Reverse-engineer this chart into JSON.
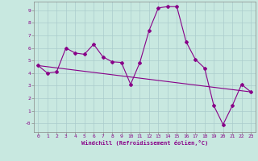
{
  "title": "",
  "xlabel": "Windchill (Refroidissement éolien,°C)",
  "ylabel": "",
  "background_color": "#c8e8e0",
  "plot_bg_color": "#c8e8e0",
  "line_color": "#880088",
  "grid_color": "#aacccc",
  "xlim": [
    -0.5,
    23.5
  ],
  "ylim": [
    -0.7,
    9.7
  ],
  "xticks": [
    0,
    1,
    2,
    3,
    4,
    5,
    6,
    7,
    8,
    9,
    10,
    11,
    12,
    13,
    14,
    15,
    16,
    17,
    18,
    19,
    20,
    21,
    22,
    23
  ],
  "yticks": [
    0,
    1,
    2,
    3,
    4,
    5,
    6,
    7,
    8,
    9
  ],
  "ytick_labels": [
    "-0",
    "1",
    "2",
    "3",
    "4",
    "5",
    "6",
    "7",
    "8",
    "9"
  ],
  "series1_x": [
    0,
    1,
    2,
    3,
    4,
    5,
    6,
    7,
    8,
    9,
    10,
    11,
    12,
    13,
    14,
    15,
    16,
    17,
    18,
    19,
    20,
    21,
    22,
    23
  ],
  "series1_y": [
    4.6,
    4.0,
    4.1,
    6.0,
    5.6,
    5.5,
    6.3,
    5.3,
    4.9,
    4.85,
    3.1,
    4.85,
    7.4,
    9.2,
    9.3,
    9.3,
    6.5,
    5.1,
    4.4,
    1.4,
    -0.1,
    1.4,
    3.1,
    2.5
  ],
  "series2_x": [
    0,
    23
  ],
  "series2_y": [
    4.6,
    2.5
  ],
  "marker": "D",
  "marker_size": 2,
  "line_width": 0.8
}
